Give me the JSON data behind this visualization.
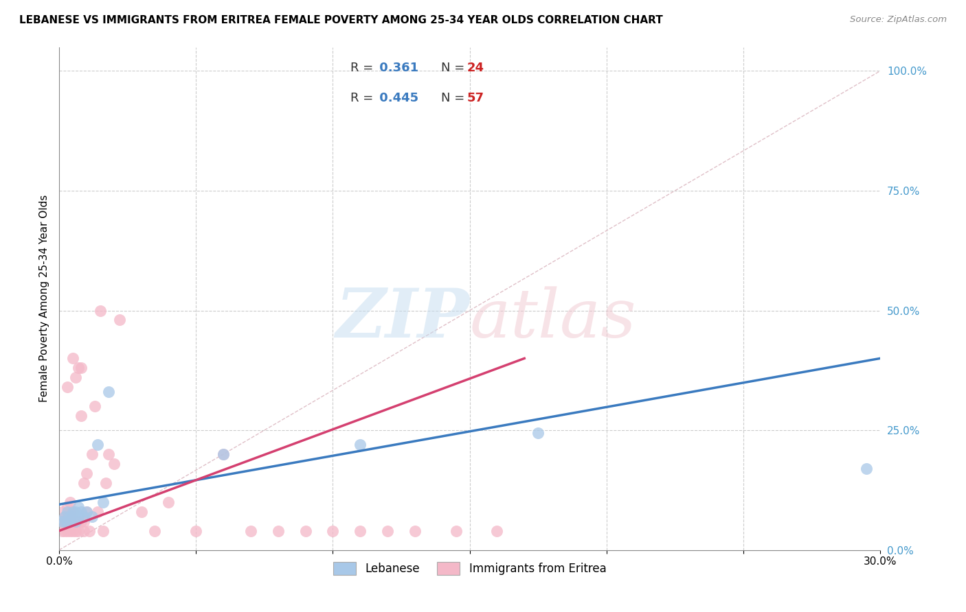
{
  "title": "LEBANESE VS IMMIGRANTS FROM ERITREA FEMALE POVERTY AMONG 25-34 YEAR OLDS CORRELATION CHART",
  "source": "Source: ZipAtlas.com",
  "ylabel": "Female Poverty Among 25-34 Year Olds",
  "xlim": [
    0.0,
    0.3
  ],
  "ylim": [
    0.0,
    1.05
  ],
  "xticks": [
    0.0,
    0.05,
    0.1,
    0.15,
    0.2,
    0.25,
    0.3
  ],
  "xticklabels": [
    "0.0%",
    "",
    "",
    "",
    "",
    "",
    "30.0%"
  ],
  "yticks_right": [
    0.0,
    0.25,
    0.5,
    0.75,
    1.0
  ],
  "ytick_right_labels": [
    "0.0%",
    "25.0%",
    "50.0%",
    "75.0%",
    "100.0%"
  ],
  "blue_color": "#a8c8e8",
  "pink_color": "#f4b8c8",
  "blue_line_color": "#3a7abf",
  "pink_line_color": "#d44070",
  "ref_line_color": "#e0c0c8",
  "lebanese_x": [
    0.001,
    0.002,
    0.002,
    0.003,
    0.003,
    0.004,
    0.004,
    0.005,
    0.005,
    0.006,
    0.006,
    0.007,
    0.007,
    0.008,
    0.009,
    0.01,
    0.012,
    0.014,
    0.016,
    0.018,
    0.06,
    0.11,
    0.175,
    0.295
  ],
  "lebanese_y": [
    0.06,
    0.06,
    0.07,
    0.06,
    0.08,
    0.06,
    0.07,
    0.07,
    0.08,
    0.06,
    0.08,
    0.07,
    0.09,
    0.08,
    0.07,
    0.08,
    0.07,
    0.22,
    0.1,
    0.33,
    0.2,
    0.22,
    0.245,
    0.17
  ],
  "eritrea_x": [
    0.001,
    0.001,
    0.001,
    0.002,
    0.002,
    0.002,
    0.003,
    0.003,
    0.003,
    0.003,
    0.003,
    0.004,
    0.004,
    0.004,
    0.004,
    0.005,
    0.005,
    0.005,
    0.005,
    0.006,
    0.006,
    0.006,
    0.007,
    0.007,
    0.007,
    0.008,
    0.008,
    0.008,
    0.009,
    0.009,
    0.009,
    0.01,
    0.01,
    0.011,
    0.012,
    0.013,
    0.014,
    0.015,
    0.016,
    0.017,
    0.018,
    0.02,
    0.022,
    0.03,
    0.035,
    0.04,
    0.05,
    0.06,
    0.07,
    0.08,
    0.09,
    0.1,
    0.11,
    0.12,
    0.13,
    0.145,
    0.16
  ],
  "eritrea_y": [
    0.04,
    0.06,
    0.08,
    0.04,
    0.06,
    0.07,
    0.04,
    0.05,
    0.07,
    0.09,
    0.34,
    0.04,
    0.06,
    0.08,
    0.1,
    0.04,
    0.06,
    0.08,
    0.4,
    0.04,
    0.06,
    0.36,
    0.04,
    0.06,
    0.38,
    0.06,
    0.28,
    0.38,
    0.04,
    0.06,
    0.14,
    0.08,
    0.16,
    0.04,
    0.2,
    0.3,
    0.08,
    0.5,
    0.04,
    0.14,
    0.2,
    0.18,
    0.48,
    0.08,
    0.04,
    0.1,
    0.04,
    0.2,
    0.04,
    0.04,
    0.04,
    0.04,
    0.04,
    0.04,
    0.04,
    0.04,
    0.04
  ]
}
